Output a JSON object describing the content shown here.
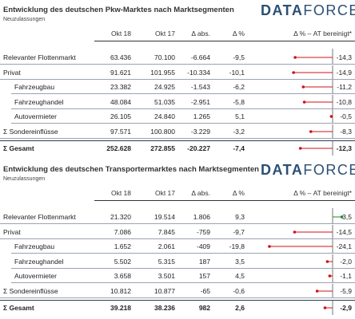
{
  "colors": {
    "negative": "#d0101a",
    "positive": "#1f8a2a",
    "logo": "#2b4f74"
  },
  "columns": [
    "Okt 18",
    "Okt 17",
    "Δ abs.",
    "Δ %",
    "Δ % – AT bereinigt*"
  ],
  "tables": [
    {
      "title": "Entwicklung des deutschen Pkw-Marktes nach Marktsegmenten",
      "subtitle": "Neuzulassungen",
      "logo": {
        "bold": "DATA",
        "thin": "FORCE"
      },
      "bar_scale_max": 25,
      "rows": [
        {
          "label": "Relevanter Flottenmarkt",
          "indent": false,
          "total": false,
          "okt18": "63.436",
          "okt17": "70.100",
          "abs": "-6.664",
          "pct": "-9,5",
          "at": "-14,3",
          "at_value": -14.3
        },
        {
          "label": "Privat",
          "indent": false,
          "total": false,
          "okt18": "91.621",
          "okt17": "101.955",
          "abs": "-10.334",
          "pct": "-10,1",
          "at": "-14,9",
          "at_value": -14.9
        },
        {
          "label": "Fahrzeugbau",
          "indent": true,
          "total": false,
          "okt18": "23.382",
          "okt17": "24.925",
          "abs": "-1.543",
          "pct": "-6,2",
          "at": "-11,2",
          "at_value": -11.2
        },
        {
          "label": "Fahrzeughandel",
          "indent": true,
          "total": false,
          "okt18": "48.084",
          "okt17": "51.035",
          "abs": "-2.951",
          "pct": "-5,8",
          "at": "-10,8",
          "at_value": -10.8
        },
        {
          "label": "Autovermieter",
          "indent": true,
          "total": false,
          "okt18": "26.105",
          "okt17": "24.840",
          "abs": "1.265",
          "pct": "5,1",
          "at": "-0,5",
          "at_value": -0.5
        },
        {
          "label": "Σ Sondereinflüsse",
          "indent": false,
          "total": false,
          "okt18": "97.571",
          "okt17": "100.800",
          "abs": "-3.229",
          "pct": "-3,2",
          "at": "-8,3",
          "at_value": -8.3
        },
        {
          "label": "Σ Gesamt",
          "indent": false,
          "total": true,
          "okt18": "252.628",
          "okt17": "272.855",
          "abs": "-20.227",
          "pct": "-7,4",
          "at": "-12,3",
          "at_value": -12.3
        }
      ]
    },
    {
      "title": "Entwicklung des deutschen Transportermarktes nach Marktsegmenten",
      "subtitle": "Neuzulassungen",
      "logo": {
        "bold": "DATA",
        "thin": "FORCE"
      },
      "bar_scale_max": 25,
      "rows": [
        {
          "label": "Relevanter Flottenmarkt",
          "indent": false,
          "total": false,
          "okt18": "21.320",
          "okt17": "19.514",
          "abs": "1.806",
          "pct": "9,3",
          "at": "3,5",
          "at_value": 3.5
        },
        {
          "label": "Privat",
          "indent": false,
          "total": false,
          "okt18": "7.086",
          "okt17": "7.845",
          "abs": "-759",
          "pct": "-9,7",
          "at": "-14,5",
          "at_value": -14.5
        },
        {
          "label": "Fahrzeugbau",
          "indent": true,
          "total": false,
          "okt18": "1.652",
          "okt17": "2.061",
          "abs": "-409",
          "pct": "-19,8",
          "at": "-24,1",
          "at_value": -24.1
        },
        {
          "label": "Fahrzeughandel",
          "indent": true,
          "total": false,
          "okt18": "5.502",
          "okt17": "5.315",
          "abs": "187",
          "pct": "3,5",
          "at": "-2,0",
          "at_value": -2.0
        },
        {
          "label": "Autovermieter",
          "indent": true,
          "total": false,
          "okt18": "3.658",
          "okt17": "3.501",
          "abs": "157",
          "pct": "4,5",
          "at": "-1,1",
          "at_value": -1.1
        },
        {
          "label": "Σ Sondereinflüsse",
          "indent": false,
          "total": false,
          "okt18": "10.812",
          "okt17": "10.877",
          "abs": "-65",
          "pct": "-0,6",
          "at": "-5,9",
          "at_value": -5.9
        },
        {
          "label": "Σ Gesamt",
          "indent": false,
          "total": true,
          "okt18": "39.218",
          "okt17": "38.236",
          "abs": "982",
          "pct": "2,6",
          "at": "-2,9",
          "at_value": -2.9
        }
      ]
    }
  ]
}
